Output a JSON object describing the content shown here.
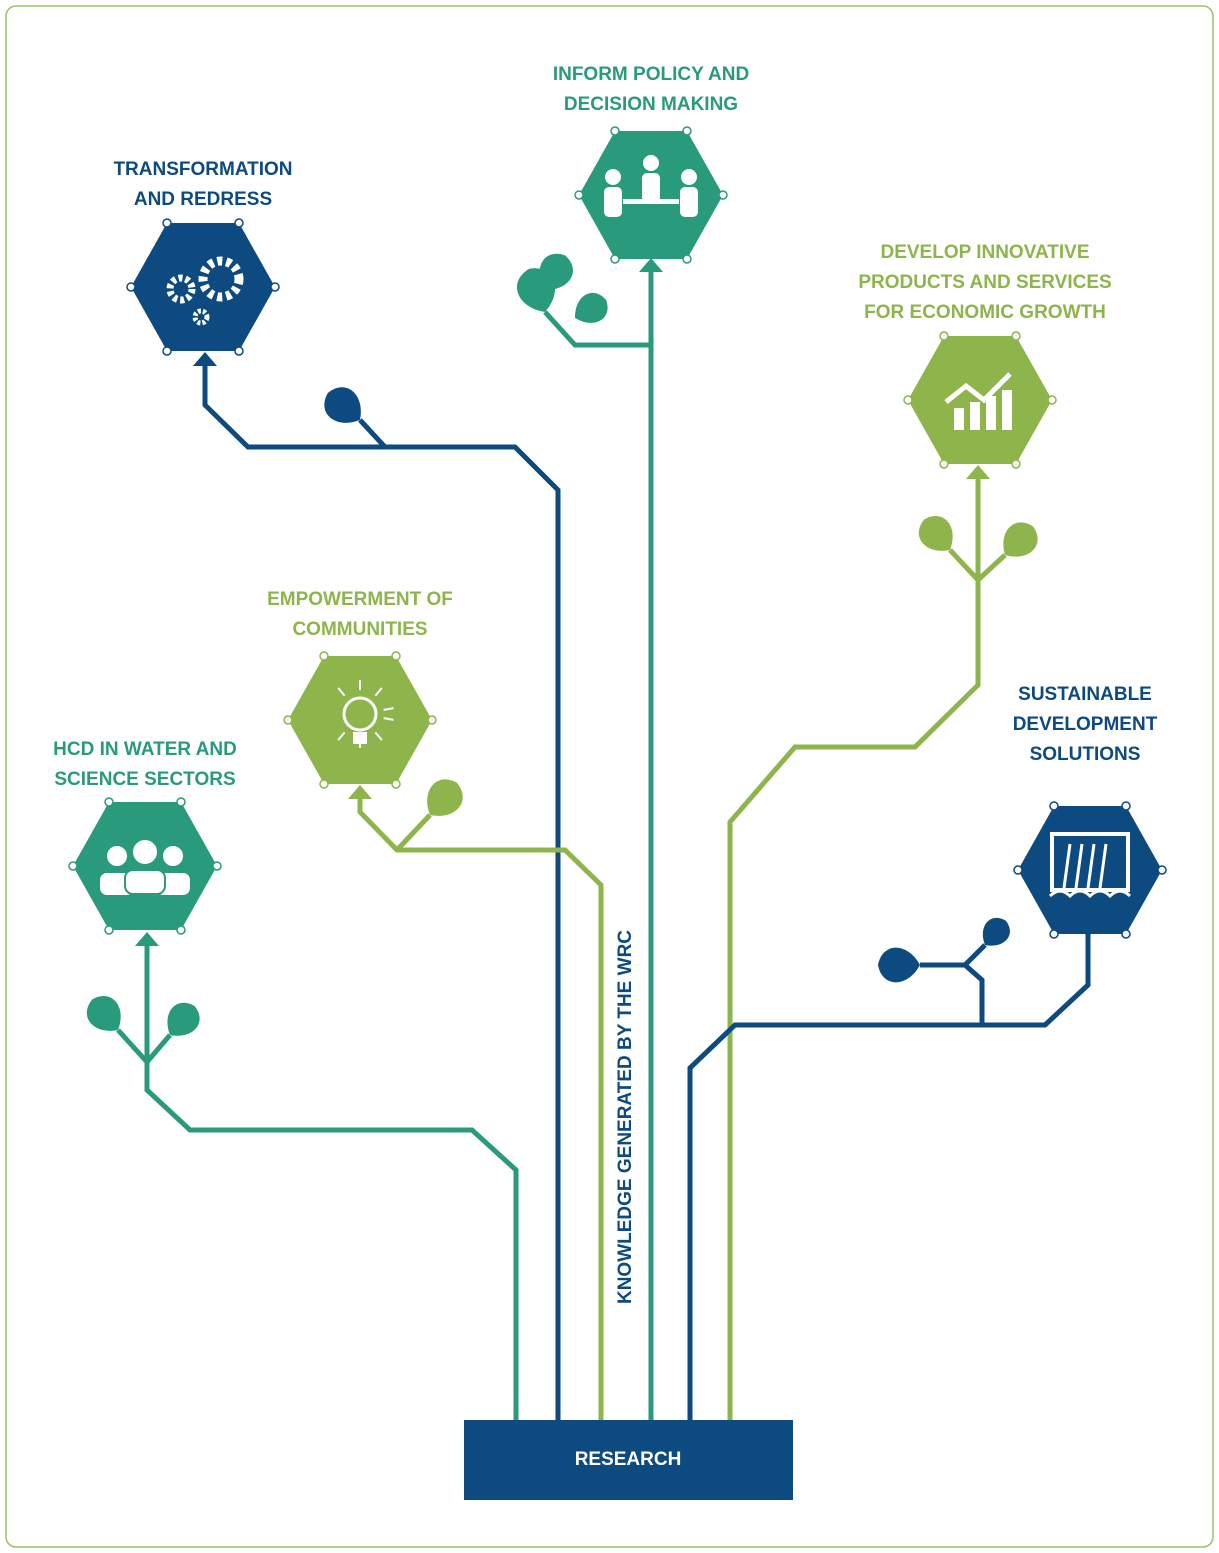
{
  "nodes": [
    {
      "label": [
        "INFORM POLICY AND",
        "DECISION MAKING"
      ]
    },
    {
      "label": [
        "TRANSFORMATION",
        "AND REDRESS"
      ]
    },
    {
      "label": [
        "DEVELOP INNOVATIVE",
        "PRODUCTS AND SERVICES",
        "FOR ECONOMIC GROWTH"
      ]
    },
    {
      "label": [
        "EMPOWERMENT OF",
        "COMMUNITIES"
      ]
    },
    {
      "label": [
        "HCD IN WATER AND",
        "SCIENCE SECTORS"
      ]
    },
    {
      "label": [
        "SUSTAINABLE",
        "DEVELOPMENT",
        "SOLUTIONS"
      ]
    }
  ],
  "stem_label": "KNOWLEDGE GENERATED BY THE WRC",
  "base_label": "RESEARCH"
}
